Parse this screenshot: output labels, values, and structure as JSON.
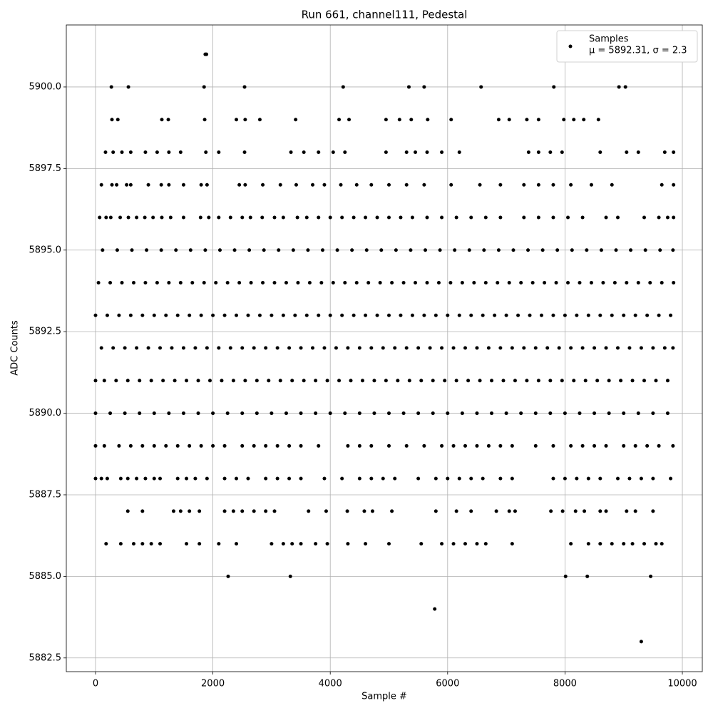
{
  "chart_data": {
    "type": "scatter",
    "title": "Run 661, channel111, Pedestal",
    "xlabel": "Sample #",
    "ylabel": "ADC Counts",
    "legend_note": "μ = 5892.31, σ = 2.3",
    "legend": "upper right",
    "grid": true,
    "xlim": [
      -498,
      10340
    ],
    "xticks": [
      0,
      2000,
      4000,
      6000,
      8000,
      10000
    ],
    "ylim": [
      5882.08,
      5901.9
    ],
    "yticks": [
      5882.5,
      {
        "value": 5885,
        "label": "5885.0"
      },
      5887.5,
      {
        "value": 5890,
        "label": "5890.0"
      },
      5892.5,
      {
        "value": 5895,
        "label": "5895.0"
      },
      5897.5,
      {
        "value": 5900,
        "label": "5900.0"
      }
    ],
    "series": [
      {
        "name": "Samples",
        "color": "#000000",
        "x": [
          0,
          200,
          400,
          600,
          800,
          1000,
          1200,
          1400,
          1600,
          1800,
          2000,
          2200,
          2400,
          2600,
          2800,
          3000,
          3200,
          3400,
          3600,
          3800,
          4000,
          4200,
          4400,
          4600,
          4800,
          5000,
          5200,
          5400,
          5600,
          5800,
          6000,
          6200,
          6400,
          6600,
          6800,
          7000,
          7200,
          7400,
          7600,
          7800,
          8000,
          8200,
          8400,
          8600,
          8800,
          9000,
          9200,
          9400,
          9600,
          9800,
          50,
          250,
          450,
          650,
          850,
          1050,
          1250,
          1450,
          1650,
          1850,
          2050,
          2250,
          2450,
          2650,
          2850,
          3050,
          3250,
          3450,
          3650,
          3850,
          4050,
          4250,
          4450,
          4650,
          4850,
          5050,
          5250,
          5450,
          5650,
          5850,
          6050,
          6250,
          6450,
          6650,
          6850,
          7050,
          7250,
          7450,
          7650,
          7850,
          8050,
          8250,
          8450,
          8650,
          8850,
          9050,
          9250,
          9450,
          9650,
          9850,
          100,
          300,
          500,
          700,
          900,
          1100,
          1300,
          1500,
          1700,
          1900,
          2100,
          2300,
          2500,
          2700,
          2900,
          3100,
          3300,
          3500,
          3700,
          3900,
          4100,
          4300,
          4500,
          4700,
          4900,
          5100,
          5300,
          5500,
          5700,
          5900,
          6100,
          6300,
          6500,
          6700,
          6900,
          7100,
          7300,
          7500,
          7700,
          7900,
          8100,
          8300,
          8500,
          8700,
          8900,
          9100,
          9300,
          9500,
          9700,
          9840,
          0,
          150,
          350,
          550,
          750,
          950,
          1150,
          1350,
          1550,
          1750,
          1950,
          2150,
          2350,
          2550,
          2750,
          2950,
          3150,
          3350,
          3550,
          3750,
          3950,
          4150,
          4350,
          4550,
          4750,
          4950,
          5150,
          5350,
          5550,
          5750,
          5950,
          6150,
          6350,
          6550,
          6750,
          6950,
          7150,
          7350,
          7550,
          7750,
          7950,
          8150,
          8350,
          8550,
          8750,
          8950,
          9150,
          9350,
          9550,
          9750,
          0,
          250,
          500,
          750,
          1000,
          1250,
          1500,
          1750,
          2000,
          2250,
          2500,
          2750,
          3000,
          3250,
          3500,
          3750,
          4000,
          4250,
          4500,
          4750,
          5000,
          5250,
          5500,
          5750,
          6000,
          6250,
          6500,
          6750,
          7000,
          7250,
          7500,
          7750,
          8000,
          8250,
          8500,
          8750,
          9000,
          9250,
          9500,
          9750,
          120,
          370,
          620,
          870,
          1120,
          1370,
          1620,
          1870,
          2120,
          2370,
          2620,
          2870,
          3120,
          3370,
          3620,
          3870,
          4120,
          4370,
          4620,
          4870,
          5120,
          5370,
          5620,
          5870,
          6120,
          6370,
          6620,
          6870,
          7120,
          7370,
          7620,
          7870,
          8120,
          8370,
          8620,
          8870,
          9120,
          9370,
          9620,
          9840,
          70,
          180,
          260,
          420,
          560,
          700,
          840,
          980,
          1130,
          1280,
          1500,
          1790,
          1930,
          2100,
          2300,
          2500,
          2640,
          2840,
          3050,
          3200,
          3440,
          3600,
          3800,
          4000,
          4200,
          4400,
          4600,
          4800,
          5000,
          5200,
          5400,
          5650,
          5900,
          6150,
          6400,
          6650,
          6900,
          7300,
          7550,
          7800,
          8050,
          8300,
          8700,
          8900,
          9350,
          9600,
          9750,
          9850,
          0,
          150,
          400,
          600,
          800,
          1000,
          1200,
          1400,
          1600,
          1800,
          2000,
          2200,
          2500,
          2700,
          2900,
          3100,
          3300,
          3500,
          3800,
          4300,
          4500,
          4700,
          5000,
          5300,
          5600,
          5900,
          6100,
          6300,
          6500,
          6700,
          6900,
          7100,
          7500,
          7800,
          8100,
          8300,
          8500,
          8700,
          9000,
          9200,
          9400,
          9600,
          9840,
          0,
          100,
          200,
          430,
          550,
          700,
          850,
          1000,
          1100,
          1400,
          1550,
          1700,
          1900,
          2200,
          2400,
          2600,
          2900,
          3100,
          3300,
          3500,
          3900,
          4200,
          4500,
          4700,
          4900,
          5100,
          5500,
          5800,
          6000,
          6200,
          6400,
          6600,
          6900,
          7100,
          7800,
          8000,
          8200,
          8400,
          8600,
          8900,
          9100,
          9300,
          9500,
          9800,
          100,
          280,
          360,
          530,
          600,
          900,
          1120,
          1250,
          1500,
          1800,
          1900,
          2450,
          2550,
          2850,
          3150,
          3420,
          3700,
          3900,
          4180,
          4450,
          4700,
          5000,
          5300,
          5600,
          6060,
          6550,
          6900,
          7300,
          7550,
          7800,
          8100,
          8450,
          8800,
          9650,
          9850,
          170,
          300,
          450,
          600,
          850,
          1050,
          1250,
          1450,
          1880,
          2100,
          2540,
          3330,
          3550,
          3800,
          4050,
          4250,
          4950,
          5300,
          5450,
          5650,
          5900,
          6200,
          7380,
          7550,
          7750,
          7950,
          8600,
          9050,
          9250,
          9700,
          9850,
          280,
          380,
          1130,
          1240,
          1860,
          2400,
          2550,
          2800,
          3410,
          4150,
          4320,
          4950,
          5180,
          5380,
          5660,
          6060,
          6870,
          7050,
          7350,
          7550,
          7980,
          8150,
          8320,
          8570,
          550,
          800,
          1330,
          1450,
          1600,
          1770,
          2200,
          2350,
          2500,
          2700,
          2900,
          3050,
          3630,
          3930,
          4290,
          4580,
          4720,
          5050,
          5800,
          6150,
          6400,
          6830,
          7050,
          7150,
          7760,
          7960,
          8180,
          8330,
          8600,
          8700,
          9050,
          9200,
          9500,
          180,
          430,
          650,
          800,
          950,
          1100,
          1550,
          1770,
          2100,
          2400,
          3000,
          3200,
          3350,
          3500,
          3750,
          3950,
          4300,
          4600,
          5000,
          5550,
          5900,
          6100,
          6300,
          6500,
          6650,
          7100,
          8100,
          8400,
          8600,
          8800,
          9000,
          9150,
          9350,
          9550,
          9650,
          270,
          560,
          1850,
          2540,
          4220,
          5340,
          5600,
          6570,
          7810,
          8920,
          9030,
          1870,
          1890,
          2260,
          3320,
          8010,
          8380,
          9460,
          5780,
          9300
        ],
        "values": [
          5893,
          5893,
          5893,
          5893,
          5893,
          5893,
          5893,
          5893,
          5893,
          5893,
          5893,
          5893,
          5893,
          5893,
          5893,
          5893,
          5893,
          5893,
          5893,
          5893,
          5893,
          5893,
          5893,
          5893,
          5893,
          5893,
          5893,
          5893,
          5893,
          5893,
          5893,
          5893,
          5893,
          5893,
          5893,
          5893,
          5893,
          5893,
          5893,
          5893,
          5893,
          5893,
          5893,
          5893,
          5893,
          5893,
          5893,
          5893,
          5893,
          5893,
          5894,
          5894,
          5894,
          5894,
          5894,
          5894,
          5894,
          5894,
          5894,
          5894,
          5894,
          5894,
          5894,
          5894,
          5894,
          5894,
          5894,
          5894,
          5894,
          5894,
          5894,
          5894,
          5894,
          5894,
          5894,
          5894,
          5894,
          5894,
          5894,
          5894,
          5894,
          5894,
          5894,
          5894,
          5894,
          5894,
          5894,
          5894,
          5894,
          5894,
          5894,
          5894,
          5894,
          5894,
          5894,
          5894,
          5894,
          5894,
          5894,
          5894,
          5892,
          5892,
          5892,
          5892,
          5892,
          5892,
          5892,
          5892,
          5892,
          5892,
          5892,
          5892,
          5892,
          5892,
          5892,
          5892,
          5892,
          5892,
          5892,
          5892,
          5892,
          5892,
          5892,
          5892,
          5892,
          5892,
          5892,
          5892,
          5892,
          5892,
          5892,
          5892,
          5892,
          5892,
          5892,
          5892,
          5892,
          5892,
          5892,
          5892,
          5892,
          5892,
          5892,
          5892,
          5892,
          5892,
          5892,
          5892,
          5892,
          5892,
          5891,
          5891,
          5891,
          5891,
          5891,
          5891,
          5891,
          5891,
          5891,
          5891,
          5891,
          5891,
          5891,
          5891,
          5891,
          5891,
          5891,
          5891,
          5891,
          5891,
          5891,
          5891,
          5891,
          5891,
          5891,
          5891,
          5891,
          5891,
          5891,
          5891,
          5891,
          5891,
          5891,
          5891,
          5891,
          5891,
          5891,
          5891,
          5891,
          5891,
          5891,
          5891,
          5891,
          5891,
          5891,
          5891,
          5891,
          5891,
          5891,
          5891,
          5890,
          5890,
          5890,
          5890,
          5890,
          5890,
          5890,
          5890,
          5890,
          5890,
          5890,
          5890,
          5890,
          5890,
          5890,
          5890,
          5890,
          5890,
          5890,
          5890,
          5890,
          5890,
          5890,
          5890,
          5890,
          5890,
          5890,
          5890,
          5890,
          5890,
          5890,
          5890,
          5890,
          5890,
          5890,
          5890,
          5890,
          5890,
          5890,
          5890,
          5895,
          5895,
          5895,
          5895,
          5895,
          5895,
          5895,
          5895,
          5895,
          5895,
          5895,
          5895,
          5895,
          5895,
          5895,
          5895,
          5895,
          5895,
          5895,
          5895,
          5895,
          5895,
          5895,
          5895,
          5895,
          5895,
          5895,
          5895,
          5895,
          5895,
          5895,
          5895,
          5895,
          5895,
          5895,
          5895,
          5895,
          5895,
          5895,
          5895,
          5896,
          5896,
          5896,
          5896,
          5896,
          5896,
          5896,
          5896,
          5896,
          5896,
          5896,
          5896,
          5896,
          5896,
          5896,
          5896,
          5896,
          5896,
          5896,
          5896,
          5896,
          5896,
          5896,
          5896,
          5896,
          5896,
          5896,
          5896,
          5896,
          5896,
          5896,
          5896,
          5896,
          5896,
          5896,
          5896,
          5896,
          5896,
          5896,
          5896,
          5896,
          5896,
          5896,
          5896,
          5896,
          5896,
          5896,
          5896,
          5889,
          5889,
          5889,
          5889,
          5889,
          5889,
          5889,
          5889,
          5889,
          5889,
          5889,
          5889,
          5889,
          5889,
          5889,
          5889,
          5889,
          5889,
          5889,
          5889,
          5889,
          5889,
          5889,
          5889,
          5889,
          5889,
          5889,
          5889,
          5889,
          5889,
          5889,
          5889,
          5889,
          5889,
          5889,
          5889,
          5889,
          5889,
          5889,
          5889,
          5889,
          5889,
          5889,
          5888,
          5888,
          5888,
          5888,
          5888,
          5888,
          5888,
          5888,
          5888,
          5888,
          5888,
          5888,
          5888,
          5888,
          5888,
          5888,
          5888,
          5888,
          5888,
          5888,
          5888,
          5888,
          5888,
          5888,
          5888,
          5888,
          5888,
          5888,
          5888,
          5888,
          5888,
          5888,
          5888,
          5888,
          5888,
          5888,
          5888,
          5888,
          5888,
          5888,
          5888,
          5888,
          5888,
          5888,
          5897,
          5897,
          5897,
          5897,
          5897,
          5897,
          5897,
          5897,
          5897,
          5897,
          5897,
          5897,
          5897,
          5897,
          5897,
          5897,
          5897,
          5897,
          5897,
          5897,
          5897,
          5897,
          5897,
          5897,
          5897,
          5897,
          5897,
          5897,
          5897,
          5897,
          5897,
          5897,
          5897,
          5897,
          5897,
          5898,
          5898,
          5898,
          5898,
          5898,
          5898,
          5898,
          5898,
          5898,
          5898,
          5898,
          5898,
          5898,
          5898,
          5898,
          5898,
          5898,
          5898,
          5898,
          5898,
          5898,
          5898,
          5898,
          5898,
          5898,
          5898,
          5898,
          5898,
          5898,
          5898,
          5898,
          5899,
          5899,
          5899,
          5899,
          5899,
          5899,
          5899,
          5899,
          5899,
          5899,
          5899,
          5899,
          5899,
          5899,
          5899,
          5899,
          5899,
          5899,
          5899,
          5899,
          5899,
          5899,
          5899,
          5899,
          5887,
          5887,
          5887,
          5887,
          5887,
          5887,
          5887,
          5887,
          5887,
          5887,
          5887,
          5887,
          5887,
          5887,
          5887,
          5887,
          5887,
          5887,
          5887,
          5887,
          5887,
          5887,
          5887,
          5887,
          5887,
          5887,
          5887,
          5887,
          5887,
          5887,
          5887,
          5887,
          5887,
          5886,
          5886,
          5886,
          5886,
          5886,
          5886,
          5886,
          5886,
          5886,
          5886,
          5886,
          5886,
          5886,
          5886,
          5886,
          5886,
          5886,
          5886,
          5886,
          5886,
          5886,
          5886,
          5886,
          5886,
          5886,
          5886,
          5886,
          5886,
          5886,
          5886,
          5886,
          5886,
          5886,
          5886,
          5886,
          5900,
          5900,
          5900,
          5900,
          5900,
          5900,
          5900,
          5900,
          5900,
          5900,
          5900,
          5901,
          5901,
          5885,
          5885,
          5885,
          5885,
          5885,
          5884,
          5883
        ]
      }
    ]
  }
}
